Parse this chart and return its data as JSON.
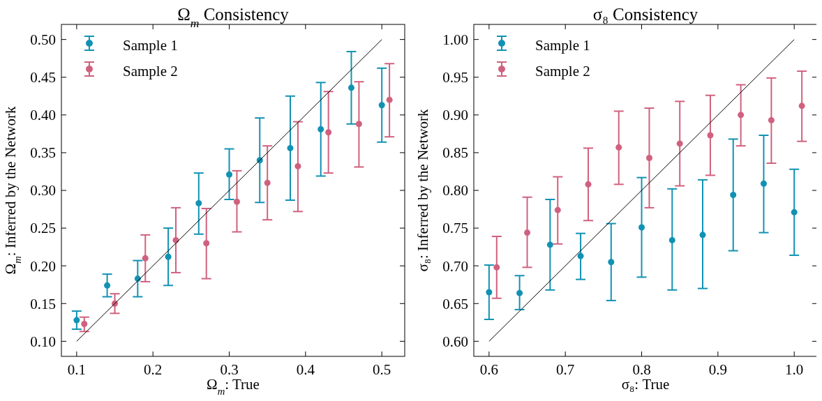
{
  "chart_data": [
    {
      "type": "scatter",
      "title": "Ω$_{m}$ Consistency",
      "xlabel": "Ω$_{m}$: True",
      "ylabel": "Ω$_{m}$: Inferred by the Network",
      "xlim": [
        0.08,
        0.53
      ],
      "ylim": [
        0.08,
        0.52
      ],
      "xticks": [
        0.1,
        0.2,
        0.3,
        0.4,
        0.5
      ],
      "yticks": [
        {
          "value": 0.1,
          "label": "0.10"
        },
        {
          "value": 0.15,
          "label": "0.15"
        },
        {
          "value": 0.2,
          "label": "0.20"
        },
        {
          "value": 0.25,
          "label": "0.25"
        },
        {
          "value": 0.3,
          "label": "0.30"
        },
        {
          "value": 0.35,
          "label": "0.35"
        },
        {
          "value": 0.4,
          "label": "0.40"
        },
        {
          "value": 0.45,
          "label": "0.45"
        },
        {
          "value": 0.5,
          "label": "0.50"
        }
      ],
      "grid": false,
      "legend": "top left",
      "marker": "circle",
      "series": [
        {
          "name": "Sample 1",
          "color": "#1192b3",
          "x": [
            0.1,
            0.14,
            0.18,
            0.22,
            0.26,
            0.3,
            0.34,
            0.38,
            0.42,
            0.46,
            0.5
          ],
          "values": [
            0.128,
            0.174,
            0.183,
            0.212,
            0.283,
            0.321,
            0.34,
            0.356,
            0.381,
            0.436,
            0.413
          ],
          "errors": [
            [
              0.116,
              0.14
            ],
            [
              0.159,
              0.189
            ],
            [
              0.159,
              0.207
            ],
            [
              0.174,
              0.25
            ],
            [
              0.242,
              0.323
            ],
            [
              0.288,
              0.355
            ],
            [
              0.284,
              0.396
            ],
            [
              0.287,
              0.425
            ],
            [
              0.319,
              0.443
            ],
            [
              0.388,
              0.484
            ],
            [
              0.364,
              0.462
            ]
          ]
        },
        {
          "name": "Sample 2",
          "color": "#d0617e",
          "x": [
            0.11,
            0.15,
            0.19,
            0.23,
            0.27,
            0.31,
            0.35,
            0.39,
            0.43,
            0.47,
            0.51
          ],
          "values": [
            0.123,
            0.15,
            0.21,
            0.234,
            0.23,
            0.285,
            0.31,
            0.332,
            0.377,
            0.388,
            0.42
          ],
          "errors": [
            [
              0.113,
              0.132
            ],
            [
              0.137,
              0.163
            ],
            [
              0.179,
              0.241
            ],
            [
              0.191,
              0.277
            ],
            [
              0.183,
              0.276
            ],
            [
              0.245,
              0.326
            ],
            [
              0.261,
              0.359
            ],
            [
              0.272,
              0.391
            ],
            [
              0.323,
              0.431
            ],
            [
              0.331,
              0.444
            ],
            [
              0.371,
              0.468
            ]
          ]
        },
        {
          "type": "line",
          "color": "#000000",
          "marker": "none",
          "x": [
            0.1,
            0.5
          ],
          "values": [
            0.1,
            0.5
          ]
        }
      ]
    },
    {
      "type": "scatter",
      "title": "σ₈ Consistency",
      "xlabel": "σ₈: True",
      "ylabel": "σ₈: Inferred by the Network",
      "xlim": [
        0.58,
        1.03
      ],
      "ylim": [
        0.58,
        1.02
      ],
      "xticks": [
        0.6,
        0.7,
        0.8,
        0.9,
        {
          "value": 1.0,
          "label": "1.0"
        }
      ],
      "yticks": [
        {
          "value": 0.6,
          "label": "0.60"
        },
        {
          "value": 0.65,
          "label": "0.65"
        },
        {
          "value": 0.7,
          "label": "0.70"
        },
        {
          "value": 0.75,
          "label": "0.75"
        },
        {
          "value": 0.8,
          "label": "0.80"
        },
        {
          "value": 0.85,
          "label": "0.85"
        },
        {
          "value": 0.9,
          "label": "0.90"
        },
        {
          "value": 0.95,
          "label": "0.95"
        },
        {
          "value": 1.0,
          "label": "1.00"
        }
      ],
      "grid": false,
      "legend": "top left",
      "marker": "circle",
      "series": [
        {
          "name": "Sample 1",
          "color": "#1192b3",
          "x": [
            0.6,
            0.64,
            0.68,
            0.72,
            0.76,
            0.8,
            0.84,
            0.88,
            0.92,
            0.96,
            1.0
          ],
          "values": [
            0.665,
            0.664,
            0.728,
            0.713,
            0.705,
            0.751,
            0.734,
            0.741,
            0.794,
            0.809,
            0.771
          ],
          "errors": [
            [
              0.629,
              0.701
            ],
            [
              0.642,
              0.687
            ],
            [
              0.668,
              0.788
            ],
            [
              0.682,
              0.743
            ],
            [
              0.654,
              0.756
            ],
            [
              0.685,
              0.817
            ],
            [
              0.668,
              0.802
            ],
            [
              0.67,
              0.814
            ],
            [
              0.72,
              0.868
            ],
            [
              0.744,
              0.873
            ],
            [
              0.714,
              0.828
            ]
          ]
        },
        {
          "name": "Sample 2",
          "color": "#d0617e",
          "x": [
            0.61,
            0.65,
            0.69,
            0.73,
            0.77,
            0.81,
            0.85,
            0.89,
            0.93,
            0.97,
            1.01
          ],
          "values": [
            0.698,
            0.744,
            0.774,
            0.808,
            0.857,
            0.843,
            0.862,
            0.873,
            0.9,
            0.893,
            0.912
          ],
          "errors": [
            [
              0.657,
              0.739
            ],
            [
              0.698,
              0.791
            ],
            [
              0.729,
              0.818
            ],
            [
              0.76,
              0.856
            ],
            [
              0.808,
              0.905
            ],
            [
              0.777,
              0.909
            ],
            [
              0.806,
              0.918
            ],
            [
              0.82,
              0.926
            ],
            [
              0.859,
              0.94
            ],
            [
              0.836,
              0.949
            ],
            [
              0.865,
              0.958
            ]
          ]
        },
        {
          "type": "line",
          "color": "#000000",
          "marker": "none",
          "x": [
            0.6,
            1.0
          ],
          "values": [
            0.6,
            1.0
          ]
        }
      ]
    }
  ]
}
